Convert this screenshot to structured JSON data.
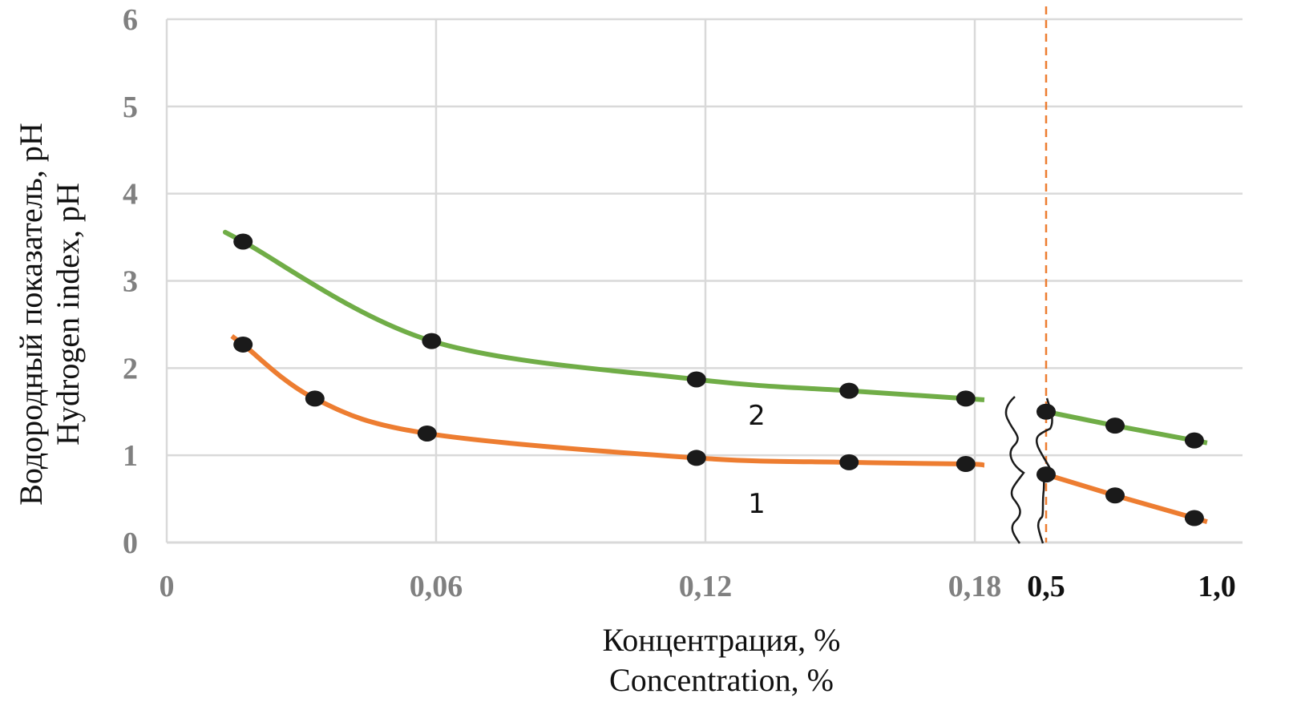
{
  "chart_data": {
    "type": "line",
    "xlabel": [
      "Концентрация, %",
      "Concentration, %"
    ],
    "ylabel": [
      "Водородный показатель, pH",
      "Hydrogen index, pH"
    ],
    "ylim": [
      0,
      6
    ],
    "y_ticks": [
      "0",
      "1",
      "2",
      "3",
      "4",
      "5",
      "6"
    ],
    "x_axis_broken": true,
    "x_segments": [
      {
        "range": [
          0,
          0.18
        ],
        "ticks": [
          {
            "value": 0,
            "label": "0"
          },
          {
            "value": 0.06,
            "label": "0,06"
          },
          {
            "value": 0.12,
            "label": "0,12"
          },
          {
            "value": 0.18,
            "label": "0,18"
          }
        ]
      },
      {
        "range": [
          0.5,
          1.0
        ],
        "ticks": [
          {
            "value": 0.5,
            "label": "0,5"
          },
          {
            "value": 1.0,
            "label": "1,0"
          }
        ]
      }
    ],
    "reference_line": {
      "x": 0.5,
      "style": "dashed",
      "color": "#ED7D31"
    },
    "grid": true,
    "series": [
      {
        "name": "1",
        "color": "#ED7D31",
        "points": [
          [
            0.017,
            2.27
          ],
          [
            0.033,
            1.65
          ],
          [
            0.058,
            1.25
          ],
          [
            0.118,
            0.97
          ],
          [
            0.152,
            0.92
          ],
          [
            0.178,
            0.9
          ],
          [
            0.5,
            0.78
          ],
          [
            0.7,
            0.54
          ],
          [
            0.93,
            0.28
          ]
        ]
      },
      {
        "name": "2",
        "color": "#70AD47",
        "points": [
          [
            0.017,
            3.45
          ],
          [
            0.059,
            2.31
          ],
          [
            0.118,
            1.87
          ],
          [
            0.152,
            1.74
          ],
          [
            0.178,
            1.65
          ],
          [
            0.5,
            1.5
          ],
          [
            0.7,
            1.34
          ],
          [
            0.93,
            1.17
          ]
        ]
      }
    ],
    "marker_color": "#1a1a1a"
  }
}
